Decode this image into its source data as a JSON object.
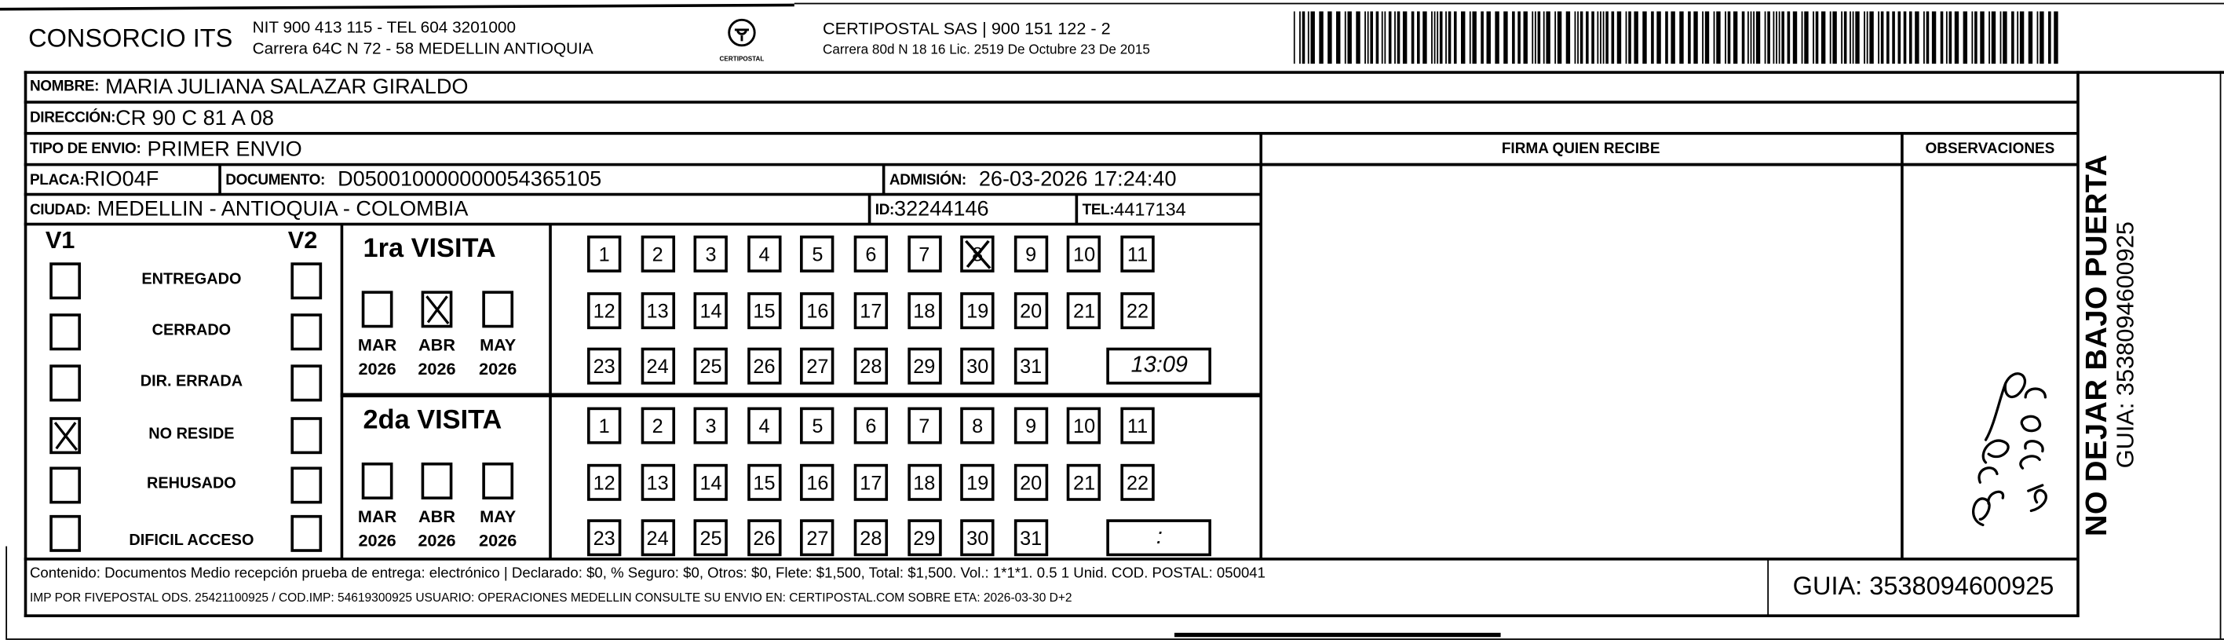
{
  "header": {
    "company": "CONSORCIO ITS",
    "company_line1": "NIT 900 413 115 - TEL 604 3201000",
    "company_line2": "Carrera 64C N 72 - 58 MEDELLIN ANTIOQUIA",
    "logo_text": "CERTIPOSTAL",
    "carrier_line1": "CERTIPOSTAL SAS | 900 151 122 - 2",
    "carrier_line2": "Carrera 80d N 18 16  Lic. 2519 De Octubre 23 De 2015"
  },
  "recipient": {
    "nombre_label": "NOMBRE:",
    "nombre": "MARIA JULIANA SALAZAR GIRALDO",
    "direccion_label": "DIRECCIÓN:",
    "direccion": "CR 90 C 81 A 08",
    "tipo_label": "TIPO DE ENVIO:",
    "tipo": "PRIMER ENVIO",
    "placa_label": "PLACA:",
    "placa": "RIO04F",
    "documento_label": "DOCUMENTO:",
    "documento": "D050010000000054365105",
    "admision_label": "ADMISIÓN:",
    "admision": "26-03-2026 17:24:40",
    "ciudad_label": "CIUDAD:",
    "ciudad": "MEDELLIN - ANTIOQUIA - COLOMBIA",
    "id_label": "ID:",
    "id": "32244146",
    "tel_label": "TEL:",
    "tel": "4417134"
  },
  "columns": {
    "firma": "FIRMA QUIEN RECIBE",
    "observaciones": "OBSERVACIONES"
  },
  "side": {
    "notice": "NO DEJAR BAJO PUERTA",
    "guia": "GUIA: 3538094600925"
  },
  "status": {
    "v1": "V1",
    "v2": "V2",
    "items": [
      {
        "label": "ENTREGADO",
        "v1": false,
        "v2": false
      },
      {
        "label": "CERRADO",
        "v1": false,
        "v2": false
      },
      {
        "label": "DIR. ERRADA",
        "v1": false,
        "v2": false
      },
      {
        "label": "NO RESIDE",
        "v1": true,
        "v2": false
      },
      {
        "label": "REHUSADO",
        "v1": false,
        "v2": false
      },
      {
        "label": "DIFICIL ACCESO",
        "v1": false,
        "v2": false
      }
    ]
  },
  "visits": [
    {
      "title": "1ra VISITA",
      "months": [
        {
          "m": "MAR",
          "y": "2026",
          "checked": false
        },
        {
          "m": "ABR",
          "y": "2026",
          "checked": true
        },
        {
          "m": "MAY",
          "y": "2026",
          "checked": false
        }
      ],
      "checked_day": 8,
      "time": "13:09"
    },
    {
      "title": "2da VISITA",
      "months": [
        {
          "m": "MAR",
          "y": "2026",
          "checked": false
        },
        {
          "m": "ABR",
          "y": "2026",
          "checked": false
        },
        {
          "m": "MAY",
          "y": "2026",
          "checked": false
        }
      ],
      "checked_day": null,
      "time": ":"
    }
  ],
  "footer": {
    "line1": "Contenido: Documentos Medio recepción prueba de entrega: electrónico | Declarado: $0, % Seguro: $0, Otros: $0, Flete: $1,500, Total: $1,500. Vol.: 1*1*1. 0.5  1 Unid. COD. POSTAL: 050041",
    "line2": "IMP POR FIVEPOSTAL ODS. 25421100925 / COD.IMP: 54619300925 USUARIO: OPERACIONES MEDELLIN CONSULTE SU ENVIO EN: CERTIPOSTAL.COM SOBRE ETA: 2026-03-30 D+2",
    "guia": "GUIA: 3538094600925"
  },
  "signature_text": "Negro Remo"
}
